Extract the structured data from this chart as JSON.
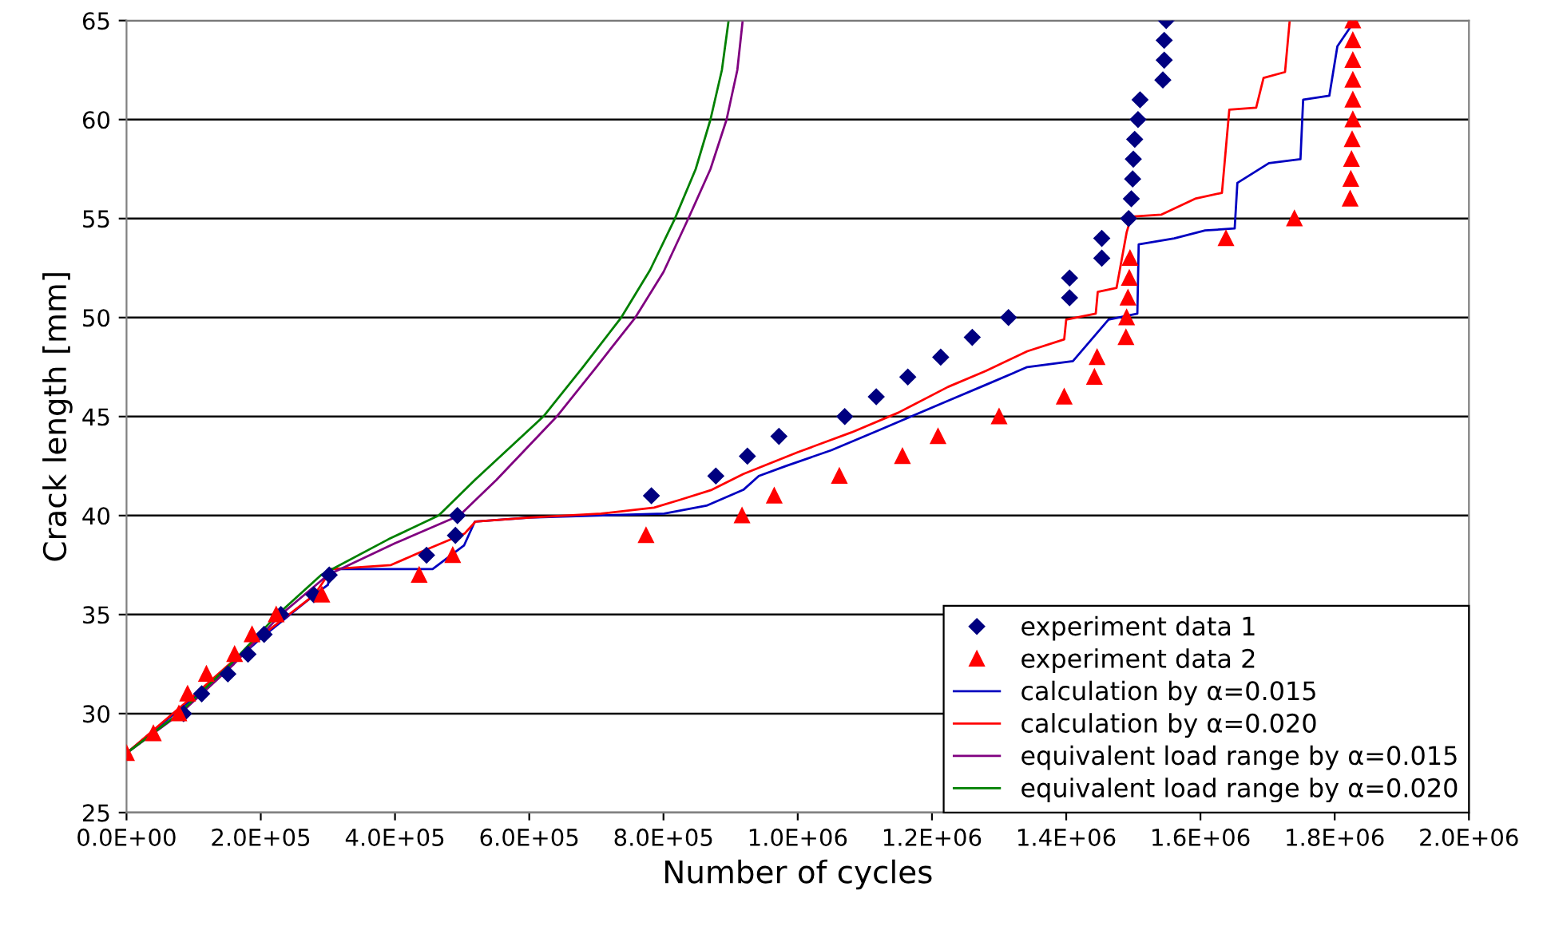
{
  "chart_data": {
    "type": "line",
    "xlabel": "Number of cycles",
    "ylabel": "Crack length [mm]",
    "xlim": [
      0,
      2000000
    ],
    "ylim": [
      25,
      65
    ],
    "xticks": [
      {
        "value": 0,
        "label": "0.0E+00"
      },
      {
        "value": 200000,
        "label": "2.0E+05"
      },
      {
        "value": 400000,
        "label": "4.0E+05"
      },
      {
        "value": 600000,
        "label": "6.0E+05"
      },
      {
        "value": 800000,
        "label": "8.0E+05"
      },
      {
        "value": 1000000,
        "label": "1.0E+06"
      },
      {
        "value": 1200000,
        "label": "1.2E+06"
      },
      {
        "value": 1400000,
        "label": "1.4E+06"
      },
      {
        "value": 1600000,
        "label": "1.6E+06"
      },
      {
        "value": 1800000,
        "label": "1.8E+06"
      },
      {
        "value": 2000000,
        "label": "2.0E+06"
      }
    ],
    "yticks": [
      25,
      30,
      35,
      40,
      45,
      50,
      55,
      60,
      65
    ],
    "grid": "y",
    "legend": "bottom right",
    "series": [
      {
        "name": "experiment data 1",
        "type": "scatter",
        "marker": "diamond",
        "color": "#000080",
        "x": [
          85000,
          112000,
          151000,
          181000,
          205000,
          230000,
          279000,
          302000,
          447000,
          490000,
          493000,
          782000,
          878000,
          925000,
          972000,
          1070000,
          1117000,
          1164000,
          1213000,
          1260000,
          1314000,
          1405000,
          1405000,
          1453000,
          1453000,
          1493000,
          1497000,
          1499000,
          1500000,
          1502000,
          1507000,
          1510000,
          1544000,
          1546000,
          1546000,
          1549000
        ],
        "values": [
          30,
          31,
          32,
          33,
          34,
          35,
          36,
          37,
          38,
          39,
          40,
          41,
          42,
          43,
          44,
          45,
          46,
          47,
          48,
          49,
          50,
          51,
          52,
          53,
          54,
          55,
          56,
          57,
          58,
          59,
          60,
          61,
          62,
          63,
          64,
          65
        ]
      },
      {
        "name": "experiment data 2",
        "type": "scatter",
        "marker": "triangle",
        "color": "#ff0000",
        "x": [
          0,
          40000,
          78000,
          91000,
          119000,
          161000,
          187000,
          223000,
          291000,
          436000,
          486000,
          774000,
          917000,
          965000,
          1062000,
          1156000,
          1209000,
          1300000,
          1397000,
          1442000,
          1446000,
          1489000,
          1490000,
          1492000,
          1494000,
          1495000,
          1638000,
          1740000,
          1823000,
          1824000,
          1825000,
          1826000,
          1827000,
          1827000,
          1827000,
          1827000,
          1827000,
          1827000
        ],
        "values": [
          28,
          29,
          30,
          31,
          32,
          33,
          34,
          35,
          36,
          37,
          38,
          39,
          40,
          41,
          42,
          43,
          44,
          45,
          46,
          47,
          48,
          49,
          50,
          51,
          52,
          53,
          54,
          55,
          56,
          57,
          58,
          59,
          60,
          61,
          62,
          63,
          64,
          65
        ]
      },
      {
        "name": "calculation by α=0.015",
        "color": "#0000c0",
        "x": [
          0,
          100000,
          200000,
          280000,
          300000,
          304000,
          456000,
          503000,
          519000,
          600000,
          700000,
          801000,
          864000,
          919000,
          942000,
          982000,
          1050000,
          1120000,
          1224000,
          1280000,
          1342000,
          1410000,
          1463000,
          1506000,
          1508000,
          1561000,
          1607000,
          1651000,
          1655000,
          1702000,
          1749000,
          1753000,
          1792000,
          1804000,
          1830000
        ],
        "values": [
          28,
          30.8,
          33.8,
          36,
          36.5,
          37.3,
          37.3,
          38.5,
          39.7,
          39.9,
          40,
          40.1,
          40.5,
          41.3,
          42,
          42.5,
          43.3,
          44.3,
          45.8,
          46.6,
          47.5,
          47.8,
          49.9,
          50.2,
          53.7,
          54,
          54.4,
          54.5,
          56.8,
          57.8,
          58,
          61,
          61.2,
          63.7,
          65
        ]
      },
      {
        "name": "calculation by α=0.020",
        "color": "#ff0000",
        "x": [
          0,
          100000,
          200000,
          280000,
          306000,
          394000,
          441000,
          504000,
          520000,
          600000,
          707000,
          786000,
          825000,
          872000,
          919000,
          1000000,
          1080000,
          1150000,
          1224000,
          1280000,
          1342000,
          1397000,
          1400000,
          1444000,
          1447000,
          1475000,
          1490000,
          1497000,
          1542000,
          1592000,
          1632000,
          1643000,
          1683000,
          1694000,
          1726000,
          1733000
        ],
        "values": [
          28,
          30.9,
          33.9,
          36,
          37.3,
          37.5,
          38.2,
          39.1,
          39.7,
          39.9,
          40.1,
          40.4,
          40.8,
          41.3,
          42.1,
          43.2,
          44.2,
          45.2,
          46.5,
          47.3,
          48.3,
          48.9,
          49.9,
          50.2,
          51.3,
          51.5,
          54.3,
          55.1,
          55.2,
          56,
          56.3,
          60.5,
          60.6,
          62.1,
          62.4,
          65
        ]
      },
      {
        "name": "equivalent load range by α=0.015",
        "color": "#800080",
        "x": [
          0,
          80000,
          160000,
          230000,
          300000,
          400000,
          496000,
          551000,
          641000,
          700000,
          758000,
          800000,
          837000,
          870000,
          894000,
          910000,
          918000
        ],
        "values": [
          28,
          30,
          32.5,
          35,
          37,
          38.6,
          40,
          41.8,
          45,
          47.5,
          50,
          52.3,
          55,
          57.5,
          60,
          62.5,
          65
        ]
      },
      {
        "name": "equivalent load range by α=0.020",
        "color": "#008000",
        "x": [
          0,
          78000,
          155000,
          225000,
          290000,
          390000,
          465000,
          519000,
          621000,
          680000,
          737000,
          780000,
          817000,
          848000,
          870000,
          887000,
          897000
        ],
        "values": [
          28,
          30,
          32.5,
          35,
          37,
          38.8,
          40,
          41.8,
          45,
          47.5,
          50,
          52.4,
          55,
          57.5,
          60,
          62.5,
          65
        ]
      }
    ]
  }
}
